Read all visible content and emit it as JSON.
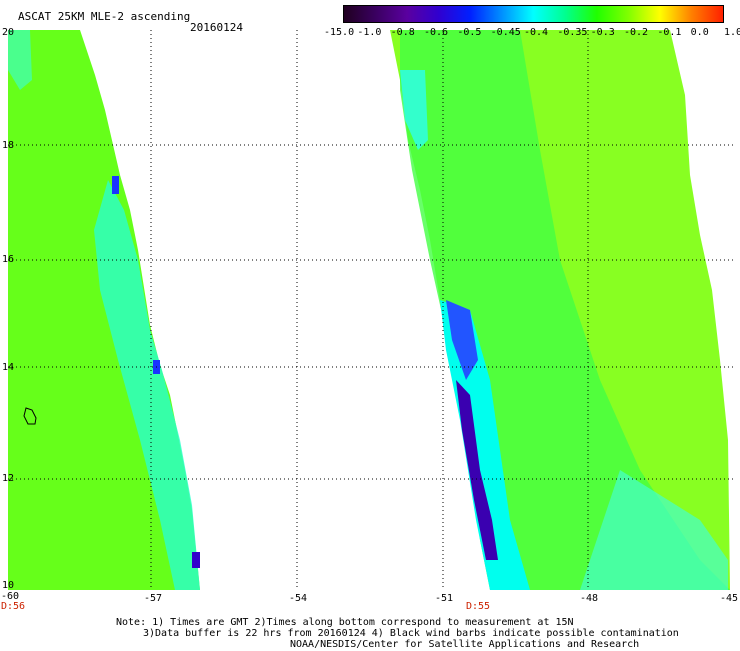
{
  "header": {
    "title": "ASCAT 25KM MLE-2 ascending",
    "date": "20160124"
  },
  "colorbar": {
    "labels": [
      "-15.0",
      "-1.0",
      "-0.8",
      "-0.6",
      "-0.5",
      "-0.45",
      "-0.4",
      "-0.35",
      "-0.3",
      "-0.2",
      "-0.1",
      "0.0",
      "1.0"
    ],
    "colors": [
      "#200020",
      "#3a0060",
      "#5a00a0",
      "#3000d0",
      "#0020ff",
      "#0090ff",
      "#00ffff",
      "#00ff90",
      "#20ff00",
      "#80ff00",
      "#ffff00",
      "#ff8000",
      "#ff2000"
    ]
  },
  "axes": {
    "lon_labels": [
      "-60",
      "-57",
      "-54",
      "-51",
      "-48",
      "-45"
    ],
    "lat_labels": [
      "20",
      "18",
      "16",
      "14",
      "12",
      "10"
    ]
  },
  "time_labels": [
    "D:56",
    "D:55"
  ],
  "notes": [
    "Note: 1) Times are GMT 2)Times along bottom correspond to measurement at 15N",
    "3)Data buffer is 22 hrs from 20160124 4) Black wind barbs indicate possible contamination",
    "NOAA/NESDIS/Center for Satellite Applications and Research"
  ]
}
